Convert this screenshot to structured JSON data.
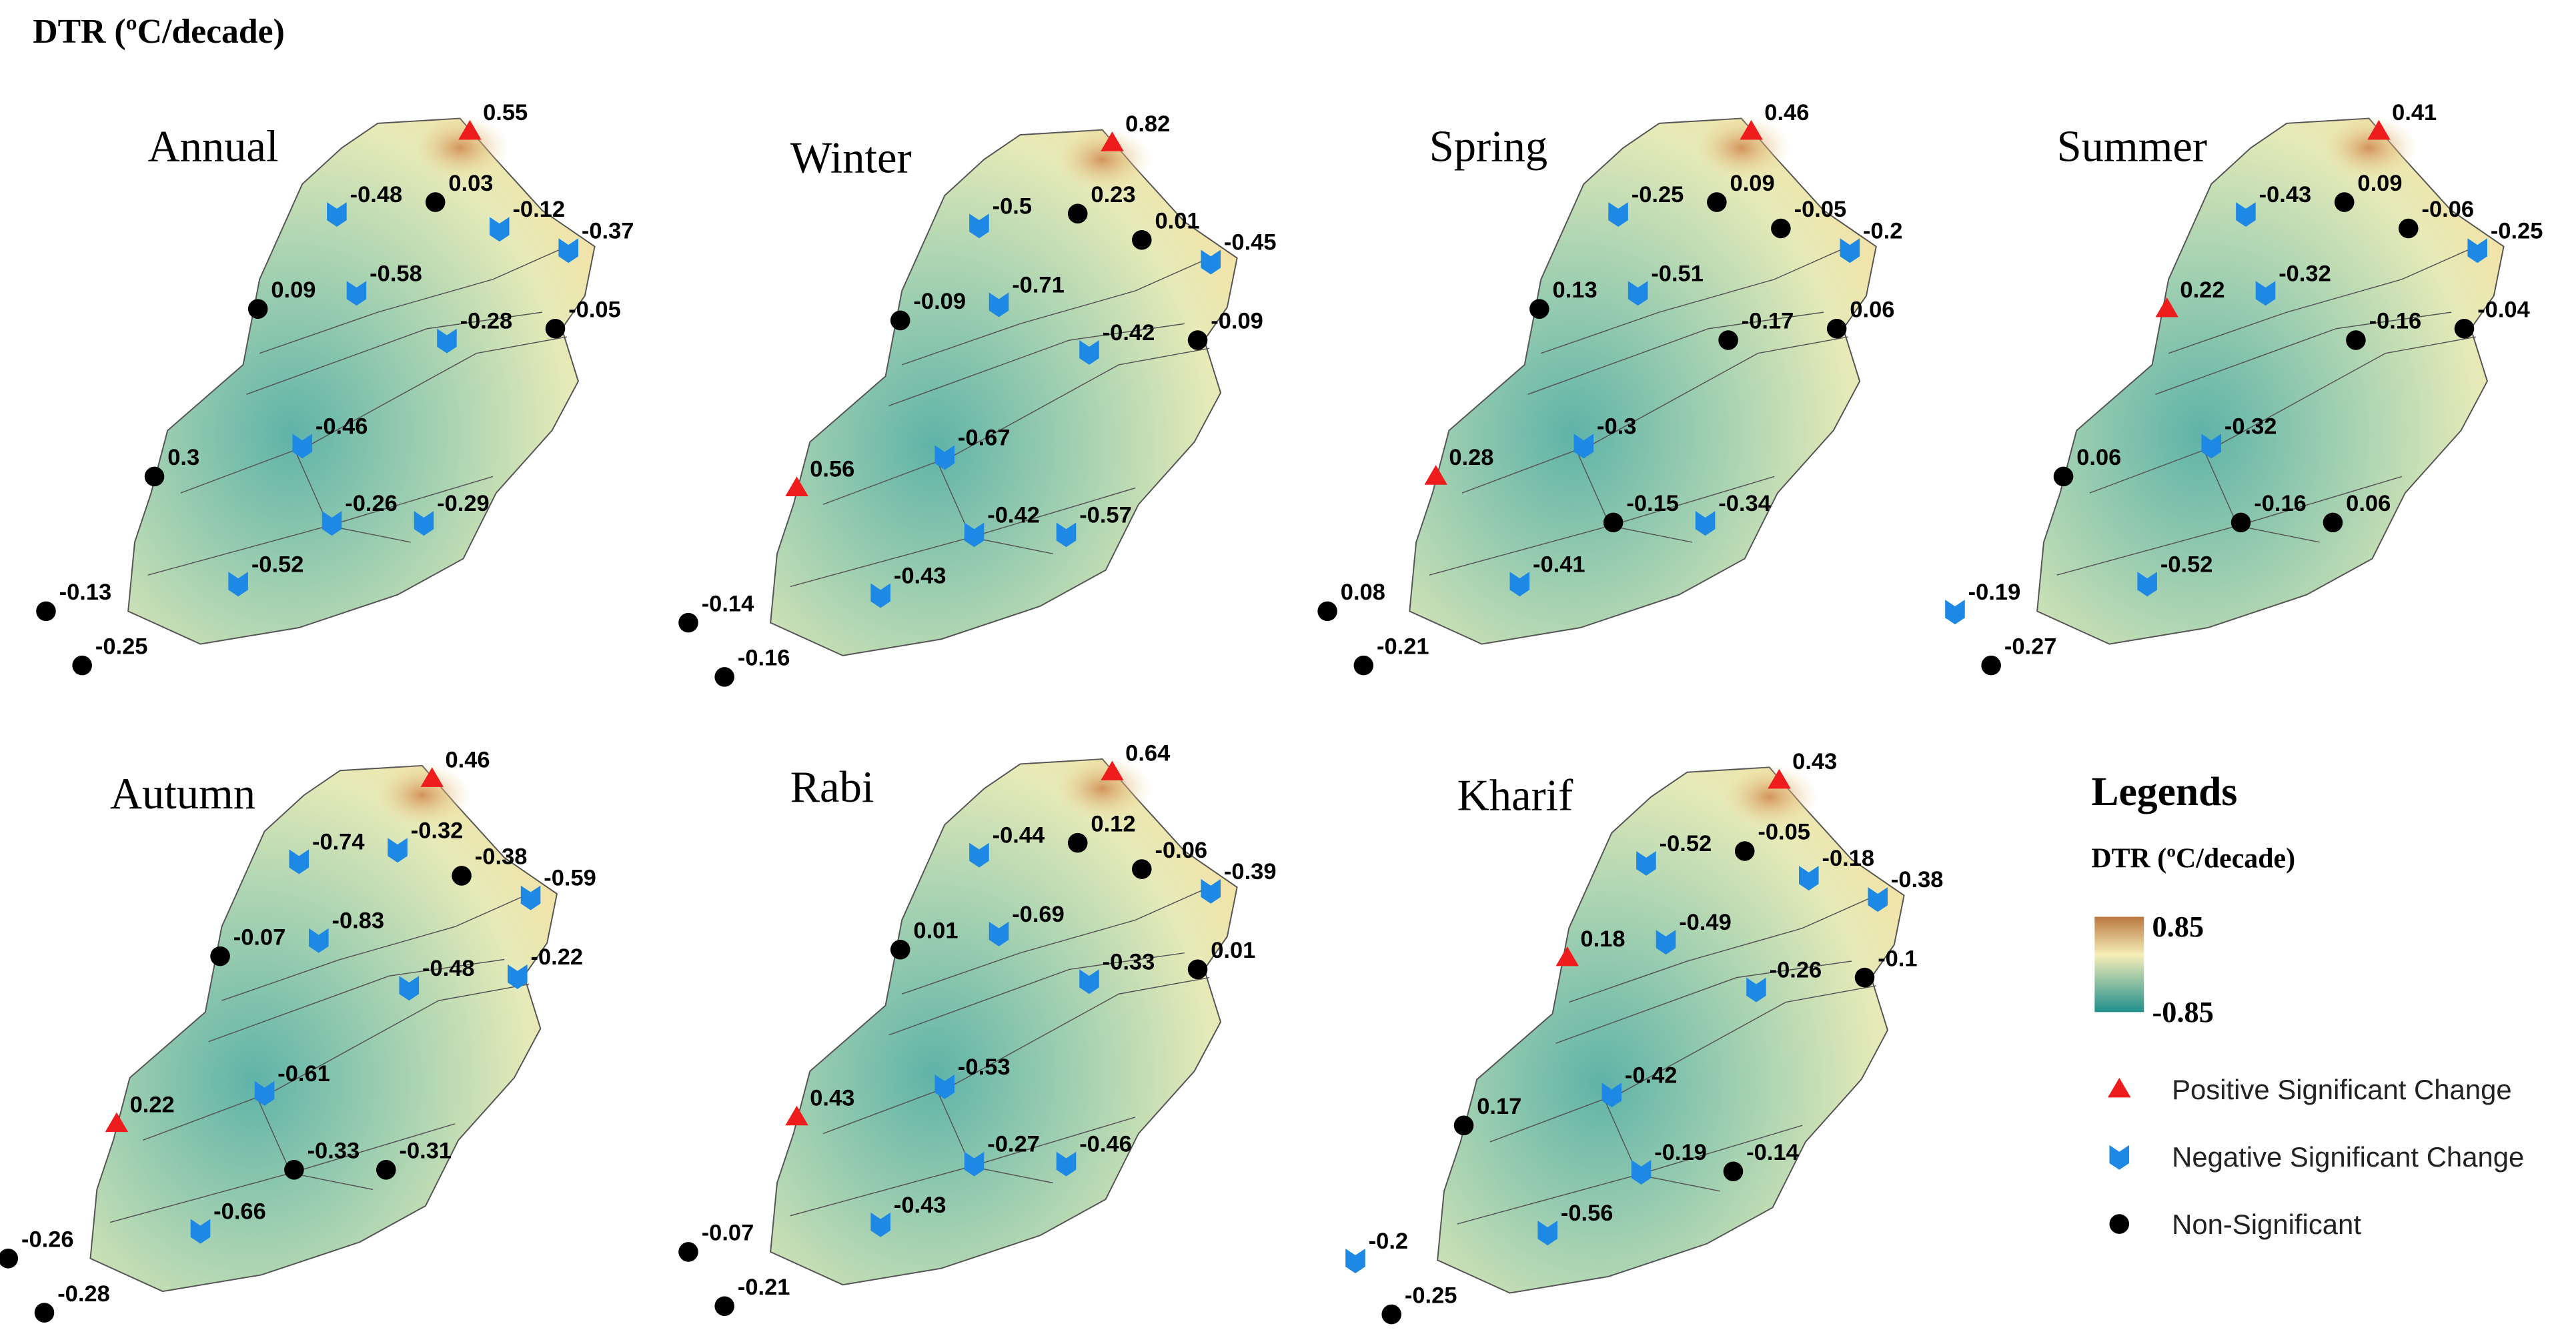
{
  "title": "DTR (ºC/decade)",
  "panels": [
    {
      "name": "Annual",
      "stations": [
        {
          "label": "0.55",
          "type": "positive"
        },
        {
          "label": "0.03",
          "type": "non-significant"
        },
        {
          "label": "-0.48",
          "type": "negative"
        },
        {
          "label": "-0.12",
          "type": "negative"
        },
        {
          "label": "-0.37",
          "type": "negative"
        },
        {
          "label": "-0.58",
          "type": "negative"
        },
        {
          "label": "0.09",
          "type": "non-significant"
        },
        {
          "label": "-0.28",
          "type": "negative"
        },
        {
          "label": "-0.05",
          "type": "non-significant"
        },
        {
          "label": "-0.46",
          "type": "negative"
        },
        {
          "label": "0.3",
          "type": "non-significant"
        },
        {
          "label": "-0.26",
          "type": "negative"
        },
        {
          "label": "-0.29",
          "type": "negative"
        },
        {
          "label": "-0.52",
          "type": "negative"
        },
        {
          "label": "-0.13",
          "type": "non-significant"
        },
        {
          "label": "-0.25",
          "type": "non-significant"
        }
      ]
    },
    {
      "name": "Winter",
      "stations": [
        {
          "label": "0.82",
          "type": "positive"
        },
        {
          "label": "0.23",
          "type": "non-significant"
        },
        {
          "label": "-0.5",
          "type": "negative"
        },
        {
          "label": "0.01",
          "type": "non-significant"
        },
        {
          "label": "-0.45",
          "type": "negative"
        },
        {
          "label": "-0.71",
          "type": "negative"
        },
        {
          "label": "-0.09",
          "type": "non-significant"
        },
        {
          "label": "-0.42",
          "type": "negative"
        },
        {
          "label": "-0.09",
          "type": "non-significant"
        },
        {
          "label": "-0.67",
          "type": "negative"
        },
        {
          "label": "0.56",
          "type": "positive"
        },
        {
          "label": "-0.42",
          "type": "negative"
        },
        {
          "label": "-0.57",
          "type": "negative"
        },
        {
          "label": "-0.43",
          "type": "negative"
        },
        {
          "label": "-0.14",
          "type": "non-significant"
        },
        {
          "label": "-0.16",
          "type": "non-significant"
        }
      ]
    },
    {
      "name": "Spring",
      "stations": [
        {
          "label": "0.46",
          "type": "positive"
        },
        {
          "label": "0.09",
          "type": "non-significant"
        },
        {
          "label": "-0.25",
          "type": "negative"
        },
        {
          "label": "-0.05",
          "type": "non-significant"
        },
        {
          "label": "-0.2",
          "type": "negative"
        },
        {
          "label": "-0.51",
          "type": "negative"
        },
        {
          "label": "0.13",
          "type": "non-significant"
        },
        {
          "label": "-0.17",
          "type": "non-significant"
        },
        {
          "label": "0.06",
          "type": "non-significant"
        },
        {
          "label": "-0.3",
          "type": "negative"
        },
        {
          "label": "0.28",
          "type": "positive"
        },
        {
          "label": "-0.15",
          "type": "non-significant"
        },
        {
          "label": "-0.34",
          "type": "negative"
        },
        {
          "label": "-0.41",
          "type": "negative"
        },
        {
          "label": "0.08",
          "type": "non-significant"
        },
        {
          "label": "-0.21",
          "type": "non-significant"
        }
      ]
    },
    {
      "name": "Summer",
      "stations": [
        {
          "label": "0.41",
          "type": "positive"
        },
        {
          "label": "0.09",
          "type": "non-significant"
        },
        {
          "label": "-0.43",
          "type": "negative"
        },
        {
          "label": "-0.06",
          "type": "non-significant"
        },
        {
          "label": "-0.25",
          "type": "negative"
        },
        {
          "label": "-0.32",
          "type": "negative"
        },
        {
          "label": "0.22",
          "type": "positive"
        },
        {
          "label": "-0.16",
          "type": "non-significant"
        },
        {
          "label": "-0.04",
          "type": "non-significant"
        },
        {
          "label": "-0.32",
          "type": "negative"
        },
        {
          "label": "0.06",
          "type": "non-significant"
        },
        {
          "label": "-0.16",
          "type": "non-significant"
        },
        {
          "label": "0.06",
          "type": "non-significant"
        },
        {
          "label": "-0.52",
          "type": "negative"
        },
        {
          "label": "-0.19",
          "type": "negative"
        },
        {
          "label": "-0.27",
          "type": "non-significant"
        }
      ]
    },
    {
      "name": "Autumn",
      "stations": [
        {
          "label": "0.46",
          "type": "positive"
        },
        {
          "label": "-0.32",
          "type": "negative"
        },
        {
          "label": "-0.74",
          "type": "negative"
        },
        {
          "label": "-0.38",
          "type": "non-significant"
        },
        {
          "label": "-0.59",
          "type": "negative"
        },
        {
          "label": "-0.83",
          "type": "negative"
        },
        {
          "label": "-0.07",
          "type": "non-significant"
        },
        {
          "label": "-0.48",
          "type": "negative"
        },
        {
          "label": "-0.22",
          "type": "negative"
        },
        {
          "label": "-0.61",
          "type": "negative"
        },
        {
          "label": "0.22",
          "type": "positive"
        },
        {
          "label": "-0.33",
          "type": "non-significant"
        },
        {
          "label": "-0.31",
          "type": "non-significant"
        },
        {
          "label": "-0.66",
          "type": "negative"
        },
        {
          "label": "-0.26",
          "type": "non-significant"
        },
        {
          "label": "-0.28",
          "type": "non-significant"
        }
      ]
    },
    {
      "name": "Rabi",
      "stations": [
        {
          "label": "0.64",
          "type": "positive"
        },
        {
          "label": "0.12",
          "type": "non-significant"
        },
        {
          "label": "-0.44",
          "type": "negative"
        },
        {
          "label": "-0.06",
          "type": "non-significant"
        },
        {
          "label": "-0.39",
          "type": "negative"
        },
        {
          "label": "-0.69",
          "type": "negative"
        },
        {
          "label": "0.01",
          "type": "non-significant"
        },
        {
          "label": "-0.33",
          "type": "negative"
        },
        {
          "label": "0.01",
          "type": "non-significant"
        },
        {
          "label": "-0.53",
          "type": "negative"
        },
        {
          "label": "0.43",
          "type": "positive"
        },
        {
          "label": "-0.27",
          "type": "negative"
        },
        {
          "label": "-0.46",
          "type": "negative"
        },
        {
          "label": "-0.43",
          "type": "negative"
        },
        {
          "label": "-0.07",
          "type": "non-significant"
        },
        {
          "label": "-0.21",
          "type": "non-significant"
        }
      ]
    },
    {
      "name": "Kharif",
      "stations": [
        {
          "label": "0.43",
          "type": "positive"
        },
        {
          "label": "-0.05",
          "type": "non-significant"
        },
        {
          "label": "-0.52",
          "type": "negative"
        },
        {
          "label": "-0.18",
          "type": "negative"
        },
        {
          "label": "-0.38",
          "type": "negative"
        },
        {
          "label": "-0.49",
          "type": "negative"
        },
        {
          "label": "0.18",
          "type": "positive"
        },
        {
          "label": "-0.26",
          "type": "negative"
        },
        {
          "label": "-0.1",
          "type": "non-significant"
        },
        {
          "label": "-0.42",
          "type": "negative"
        },
        {
          "label": "0.17",
          "type": "non-significant"
        },
        {
          "label": "-0.19",
          "type": "negative"
        },
        {
          "label": "-0.14",
          "type": "non-significant"
        },
        {
          "label": "-0.56",
          "type": "negative"
        },
        {
          "label": "-0.2",
          "type": "negative"
        },
        {
          "label": "-0.25",
          "type": "non-significant"
        }
      ]
    }
  ],
  "legend": {
    "title": "Legends",
    "subtitle": "DTR (ºC/decade)",
    "max_label": "0.85",
    "min_label": "-0.85",
    "items": [
      {
        "marker": "positive",
        "label": "Positive Significant Change"
      },
      {
        "marker": "negative",
        "label": "Negative Significant Change"
      },
      {
        "marker": "non-significant",
        "label": "Non-Significant"
      }
    ]
  }
}
